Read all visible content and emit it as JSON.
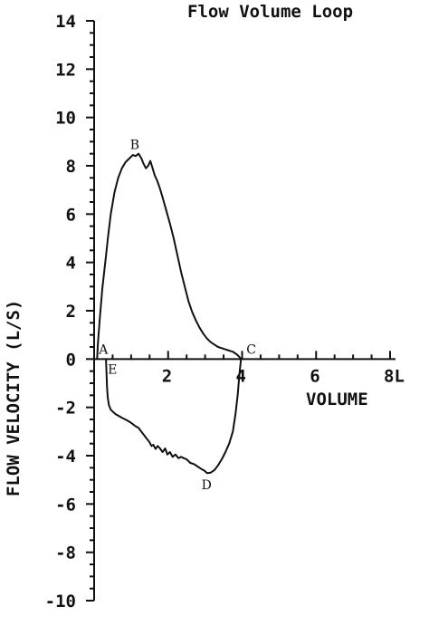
{
  "chart_data": {
    "type": "line",
    "title": "Flow Volume Loop",
    "xlabel": "VOLUME",
    "ylabel": "FLOW VELOCITY (L/S)",
    "xlim": [
      0,
      8
    ],
    "ylim": [
      -10,
      14
    ],
    "x_ticks": [
      {
        "value": 2,
        "label": "2"
      },
      {
        "value": 4,
        "label": "4"
      },
      {
        "value": 6,
        "label": "6"
      },
      {
        "value": 8,
        "label": "8L"
      }
    ],
    "y_ticks": [
      {
        "value": 14,
        "label": "14"
      },
      {
        "value": 12,
        "label": "12"
      },
      {
        "value": 10,
        "label": "10"
      },
      {
        "value": 8,
        "label": "8"
      },
      {
        "value": 6,
        "label": "6"
      },
      {
        "value": 4,
        "label": "4"
      },
      {
        "value": 2,
        "label": "2"
      },
      {
        "value": 0,
        "label": "0"
      },
      {
        "value": -2,
        "label": "-2"
      },
      {
        "value": -4,
        "label": "-4"
      },
      {
        "value": -6,
        "label": "-6"
      },
      {
        "value": -8,
        "label": "-8"
      },
      {
        "value": -10,
        "label": "-10"
      }
    ],
    "minor_ticks_per_major": 4,
    "series": [
      {
        "x": [
          0.08,
          0.1,
          0.15,
          0.22,
          0.3,
          0.38,
          0.45,
          0.55,
          0.65,
          0.75,
          0.85,
          0.95,
          1.05,
          1.12,
          1.2,
          1.28,
          1.33,
          1.4,
          1.46,
          1.52,
          1.58,
          1.64,
          1.7,
          1.78,
          1.85,
          1.95,
          2.05,
          2.15,
          2.25,
          2.35,
          2.45,
          2.55,
          2.65,
          2.75,
          2.85,
          2.95,
          3.05,
          3.15,
          3.25,
          3.35,
          3.45,
          3.55,
          3.65,
          3.75,
          3.85,
          3.92,
          3.97
        ],
        "y": [
          0.0,
          0.6,
          1.6,
          2.9,
          4.0,
          5.1,
          6.0,
          6.9,
          7.5,
          7.9,
          8.15,
          8.3,
          8.45,
          8.4,
          8.5,
          8.3,
          8.1,
          7.9,
          8.0,
          8.2,
          7.9,
          7.6,
          7.4,
          7.05,
          6.7,
          6.15,
          5.6,
          5.0,
          4.3,
          3.6,
          3.0,
          2.4,
          1.95,
          1.6,
          1.3,
          1.05,
          0.85,
          0.7,
          0.6,
          0.5,
          0.45,
          0.4,
          0.35,
          0.3,
          0.2,
          0.1,
          0.0
        ]
      },
      {
        "x": [
          3.97,
          3.93,
          3.88,
          3.82,
          3.75,
          3.65,
          3.55,
          3.45,
          3.35,
          3.25,
          3.15,
          3.05,
          2.98,
          2.9,
          2.8,
          2.7,
          2.6,
          2.5,
          2.42,
          2.35,
          2.28,
          2.2,
          2.12,
          2.05,
          1.98,
          1.92,
          1.85,
          1.78,
          1.72,
          1.66,
          1.6,
          1.55,
          1.5,
          1.45,
          1.4,
          1.35,
          1.3,
          1.25,
          1.2,
          1.12,
          1.05,
          0.98,
          0.9,
          0.82,
          0.74,
          0.66,
          0.58,
          0.52,
          0.45,
          0.4,
          0.37,
          0.35,
          0.34,
          0.33,
          0.32
        ],
        "y": [
          0.0,
          -0.6,
          -1.5,
          -2.3,
          -3.0,
          -3.5,
          -3.85,
          -4.15,
          -4.4,
          -4.6,
          -4.7,
          -4.72,
          -4.62,
          -4.55,
          -4.45,
          -4.35,
          -4.3,
          -4.15,
          -4.1,
          -4.05,
          -4.1,
          -3.95,
          -4.05,
          -3.85,
          -3.95,
          -3.7,
          -3.85,
          -3.7,
          -3.6,
          -3.72,
          -3.55,
          -3.6,
          -3.45,
          -3.35,
          -3.25,
          -3.15,
          -3.05,
          -2.95,
          -2.85,
          -2.78,
          -2.7,
          -2.62,
          -2.55,
          -2.48,
          -2.42,
          -2.35,
          -2.28,
          -2.2,
          -2.1,
          -1.9,
          -1.6,
          -1.2,
          -0.8,
          -0.4,
          0.0
        ]
      }
    ],
    "point_labels": [
      {
        "label": "A",
        "x": 0.08,
        "y": 0.0
      },
      {
        "label": "B",
        "x": 1.12,
        "y": 8.4
      },
      {
        "label": "C",
        "x": 3.97,
        "y": 0.0
      },
      {
        "label": "D",
        "x": 3.05,
        "y": -4.72
      },
      {
        "label": "E",
        "x": 0.32,
        "y": 0.0
      }
    ],
    "grid": false,
    "legend": "none"
  }
}
